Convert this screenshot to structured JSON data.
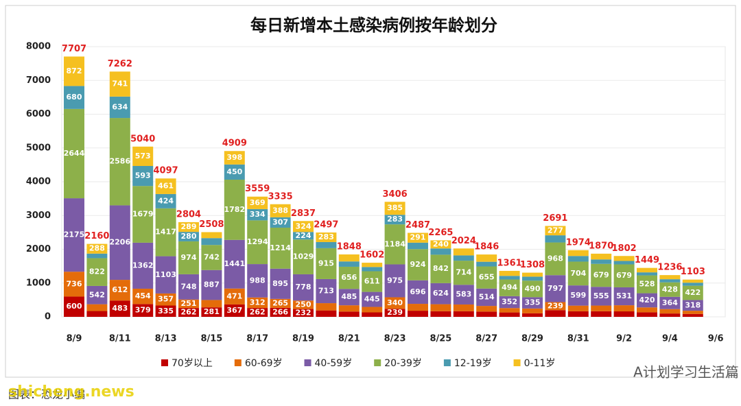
{
  "chart_data": {
    "type": "stacked_bar",
    "title": "每日新增本土感染病例按年龄划分",
    "categories": [
      "8/9",
      null,
      "8/11",
      null,
      "8/13",
      null,
      "8/15",
      null,
      "8/17",
      null,
      "8/19",
      null,
      "8/21",
      null,
      "8/23",
      null,
      "8/25",
      null,
      "8/27",
      null,
      "8/29",
      null,
      "8/31",
      null,
      "9/2",
      null,
      "9/4",
      null,
      "9/6"
    ],
    "series": [
      {
        "name": "70岁以上",
        "color": "#c00000",
        "values": [
          600,
          172,
          483,
          379,
          335,
          262,
          281,
          367,
          262,
          266,
          232,
          190,
          157,
          132,
          239,
          181,
          167,
          167,
          156,
          130,
          104,
          198,
          165,
          166,
          162,
          134,
          99,
          86,
          null
        ]
      },
      {
        "name": "60-69岁",
        "color": "#e46c0a",
        "values": [
          736,
          201,
          612,
          454,
          357,
          251,
          218,
          471,
          312,
          265,
          250,
          215,
          185,
          162,
          340,
          204,
          207,
          199,
          167,
          130,
          143,
          239,
          167,
          168,
          181,
          145,
          130,
          95,
          null
        ]
      },
      {
        "name": "40-59岁",
        "color": "#7b5ba6",
        "values": [
          2175,
          542,
          2206,
          1362,
          1103,
          748,
          887,
          1441,
          988,
          895,
          778,
          713,
          485,
          445,
          975,
          696,
          624,
          583,
          514,
          352,
          335,
          797,
          599,
          555,
          531,
          420,
          364,
          318,
          null
        ]
      },
      {
        "name": "20-39岁",
        "color": "#8db04a",
        "values": [
          2644,
          822,
          2586,
          1679,
          1417,
          974,
          742,
          1782,
          1294,
          1214,
          1029,
          915,
          656,
          611,
          1184,
          924,
          842,
          714,
          655,
          494,
          490,
          968,
          704,
          679,
          679,
          528,
          428,
          422,
          null
        ]
      },
      {
        "name": "12-19岁",
        "color": "#4a9bb0",
        "values": [
          680,
          135,
          634,
          593,
          424,
          280,
          203,
          450,
          334,
          307,
          224,
          181,
          157,
          126,
          283,
          191,
          185,
          156,
          139,
          107,
          118,
          212,
          167,
          131,
          102,
          90,
          93,
          90,
          null
        ]
      },
      {
        "name": "0-11岁",
        "color": "#f5c020",
        "values": [
          872,
          288,
          741,
          573,
          461,
          289,
          177,
          398,
          369,
          388,
          324,
          283,
          208,
          126,
          385,
          291,
          240,
          205,
          215,
          148,
          118,
          277,
          172,
          171,
          147,
          132,
          122,
          92,
          null
        ]
      }
    ],
    "totals": [
      7707,
      2160,
      7262,
      5040,
      4097,
      2804,
      2508,
      4909,
      3559,
      3335,
      2837,
      2497,
      1848,
      1602,
      3406,
      2487,
      2265,
      2024,
      1846,
      1361,
      1308,
      2691,
      1974,
      1870,
      1802,
      1449,
      1236,
      1103,
      null
    ],
    "ylim": [
      0,
      8000
    ],
    "yticks": [
      0,
      1000,
      2000,
      3000,
      4000,
      5000,
      6000,
      7000,
      8000
    ],
    "grid": true,
    "legend": "bottom"
  },
  "watermark": "A计划学习生活篇",
  "footer": "图表：恐龙小编",
  "site": "shicheng.news"
}
